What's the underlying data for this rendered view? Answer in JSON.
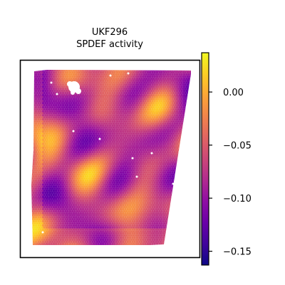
{
  "chart_data": {
    "type": "heatmap",
    "title_line1": "UKF296",
    "title_line2": "SPDEF activity",
    "xlabel": "",
    "ylabel": "",
    "colormap": "plasma",
    "colorbar": {
      "range": [
        -0.163,
        0.037
      ],
      "ticks": [
        0.0,
        -0.05,
        -0.1,
        -0.15
      ],
      "tick_labels": [
        "0.00",
        "−0.05",
        "−0.10",
        "−0.15"
      ]
    },
    "spots": {
      "pattern": "smooth blobby spatial field of per-spot SPDEF activity",
      "value_range": [
        -0.16,
        0.035
      ],
      "typical_value": -0.07,
      "missing_spots_color": "#ffffff"
    },
    "colors": {
      "frame": "#000000",
      "background": "#ffffff",
      "cmap_low": "#0d0887",
      "cmap_mid": "#cc4778",
      "cmap_high": "#f0f921"
    }
  }
}
